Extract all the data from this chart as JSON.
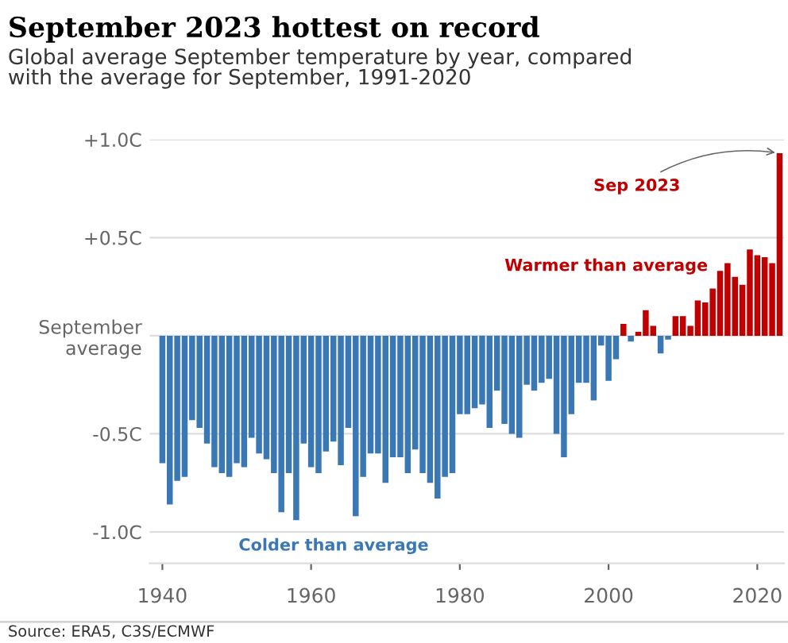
{
  "chart_data": {
    "type": "bar",
    "title": "September 2023 hottest on record",
    "subtitle": "Global average September temperature by year, compared\nwith the average for September, 1991-2020",
    "x": [
      1940,
      1941,
      1942,
      1943,
      1944,
      1945,
      1946,
      1947,
      1948,
      1949,
      1950,
      1951,
      1952,
      1953,
      1954,
      1955,
      1956,
      1957,
      1958,
      1959,
      1960,
      1961,
      1962,
      1963,
      1964,
      1965,
      1966,
      1967,
      1968,
      1969,
      1970,
      1971,
      1972,
      1973,
      1974,
      1975,
      1976,
      1977,
      1978,
      1979,
      1980,
      1981,
      1982,
      1983,
      1984,
      1985,
      1986,
      1987,
      1988,
      1989,
      1990,
      1991,
      1992,
      1993,
      1994,
      1995,
      1996,
      1997,
      1998,
      1999,
      2000,
      2001,
      2002,
      2003,
      2004,
      2005,
      2006,
      2007,
      2008,
      2009,
      2010,
      2011,
      2012,
      2013,
      2014,
      2015,
      2016,
      2017,
      2018,
      2019,
      2020,
      2021,
      2022,
      2023
    ],
    "values": [
      -0.65,
      -0.86,
      -0.74,
      -0.72,
      -0.43,
      -0.47,
      -0.55,
      -0.67,
      -0.7,
      -0.72,
      -0.65,
      -0.67,
      -0.52,
      -0.6,
      -0.63,
      -0.7,
      -0.9,
      -0.7,
      -0.94,
      -0.55,
      -0.67,
      -0.7,
      -0.59,
      -0.54,
      -0.66,
      -0.47,
      -0.92,
      -0.72,
      -0.6,
      -0.6,
      -0.75,
      -0.62,
      -0.62,
      -0.7,
      -0.58,
      -0.7,
      -0.75,
      -0.83,
      -0.72,
      -0.7,
      -0.4,
      -0.4,
      -0.37,
      -0.35,
      -0.47,
      -0.28,
      -0.45,
      -0.5,
      -0.52,
      -0.25,
      -0.28,
      -0.24,
      -0.22,
      -0.5,
      -0.62,
      -0.4,
      -0.24,
      -0.24,
      -0.33,
      -0.05,
      -0.23,
      -0.12,
      0.06,
      -0.03,
      0.02,
      0.13,
      0.05,
      -0.09,
      -0.02,
      0.1,
      0.1,
      0.05,
      0.18,
      0.17,
      0.24,
      0.33,
      0.37,
      0.3,
      0.26,
      0.44,
      0.41,
      0.4,
      0.37,
      0.93
    ],
    "colors": [
      "#3a78b5",
      "#3a78b5",
      "#3a78b5",
      "#3a78b5",
      "#3a78b5",
      "#3a78b5",
      "#3a78b5",
      "#3a78b5",
      "#3a78b5",
      "#3a78b5",
      "#3a78b5",
      "#3a78b5",
      "#3a78b5",
      "#3a78b5",
      "#3a78b5",
      "#3a78b5",
      "#3a78b5",
      "#3a78b5",
      "#3a78b5",
      "#3a78b5",
      "#3a78b5",
      "#3a78b5",
      "#3a78b5",
      "#3a78b5",
      "#3a78b5",
      "#3a78b5",
      "#3a78b5",
      "#3a78b5",
      "#3a78b5",
      "#3a78b5",
      "#3a78b5",
      "#3a78b5",
      "#3a78b5",
      "#3a78b5",
      "#3a78b5",
      "#3a78b5",
      "#3a78b5",
      "#3a78b5",
      "#3a78b5",
      "#3a78b5",
      "#3a78b5",
      "#3a78b5",
      "#3a78b5",
      "#3a78b5",
      "#3a78b5",
      "#3a78b5",
      "#3a78b5",
      "#3a78b5",
      "#3a78b5",
      "#3a78b5",
      "#3a78b5",
      "#3a78b5",
      "#3a78b5",
      "#3a78b5",
      "#3a78b5",
      "#3a78b5",
      "#3a78b5",
      "#3a78b5",
      "#3a78b5",
      "#3a78b5",
      "#3a78b5",
      "#3a78b5",
      "#c00000",
      "#3a78b5",
      "#c00000",
      "#c00000",
      "#c00000",
      "#3a78b5",
      "#3a78b5",
      "#c00000",
      "#c00000",
      "#c00000",
      "#c00000",
      "#c00000",
      "#c00000",
      "#c00000",
      "#c00000",
      "#c00000",
      "#c00000",
      "#c00000",
      "#c00000",
      "#c00000",
      "#c00000",
      "#c00000"
    ],
    "xlim": [
      1938.3,
      2023.6
    ],
    "xticks": [
      1940,
      1960,
      1980,
      2000,
      2020
    ],
    "ylim": [
      -1.16,
      1.0
    ],
    "yticks": [
      {
        "value": 1.0,
        "label": "+1.0C"
      },
      {
        "value": 0.5,
        "label": "+0.5C"
      },
      {
        "value": 0,
        "label": "September\naverage"
      },
      {
        "value": -0.5,
        "label": "-0.5C"
      },
      {
        "value": -1.0,
        "label": "-1.0C"
      }
    ],
    "grid": "y",
    "annotations": [
      {
        "text": "Sep 2023",
        "x": 2023,
        "y": 0.93
      },
      "Warmer than average",
      "Colder than average",
      "Source: ERA5, C3S/ECMWF"
    ]
  }
}
